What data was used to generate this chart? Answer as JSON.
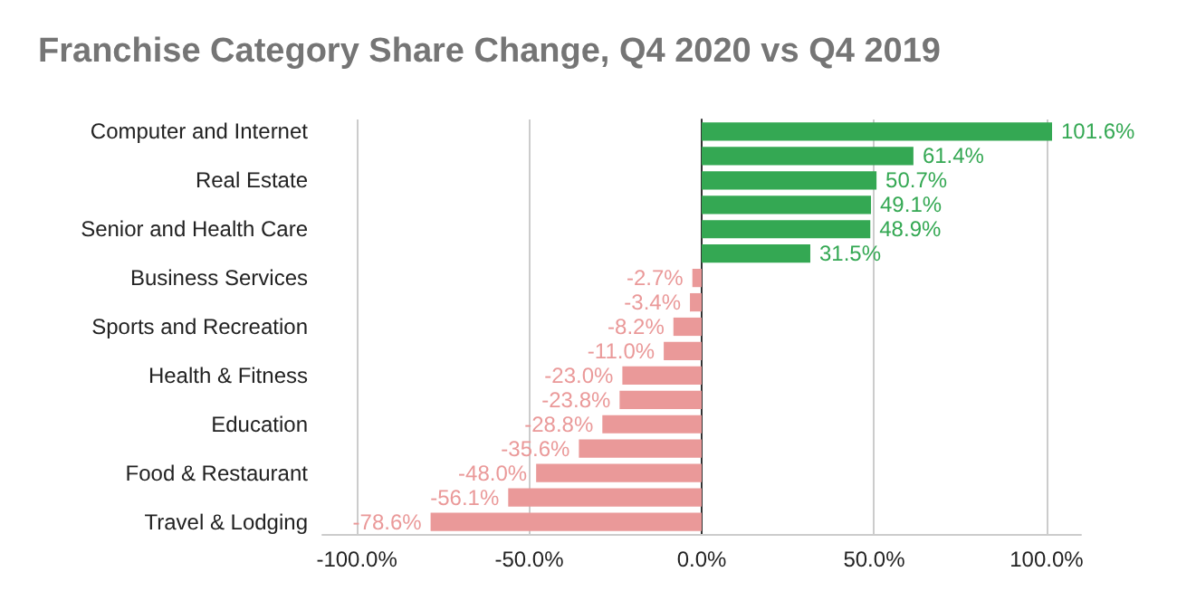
{
  "chart_data": {
    "type": "bar",
    "orientation": "horizontal",
    "title": "Franchise Category Share Change, Q4 2020 vs Q4 2019",
    "categories": [
      "Computer and Internet",
      null,
      "Real Estate",
      null,
      "Senior and Health Care",
      null,
      "Business Services",
      null,
      "Sports and Recreation",
      null,
      "Health & Fitness",
      null,
      "Education",
      null,
      "Food & Restaurant",
      null,
      "Travel & Lodging"
    ],
    "values": [
      101.6,
      61.4,
      50.7,
      49.1,
      48.9,
      31.5,
      -2.7,
      -3.4,
      -8.2,
      -11.0,
      -23.0,
      -23.8,
      -28.8,
      -35.6,
      -48.0,
      -56.1,
      -78.6
    ],
    "colors": [
      "#34a853",
      "#34a853",
      "#34a853",
      "#34a853",
      "#34a853",
      "#34a853",
      "#ea9999",
      "#ea9999",
      "#ea9999",
      "#ea9999",
      "#ea9999",
      "#ea9999",
      "#ea9999",
      "#ea9999",
      "#ea9999",
      "#ea9999",
      "#ea9999"
    ],
    "value_labels": [
      "101.6%",
      "61.4%",
      "50.7%",
      "49.1%",
      "48.9%",
      "31.5%",
      "-2.7%",
      "-3.4%",
      "-8.2%",
      "-11.0%",
      "-23.0%",
      "-23.8%",
      "-28.8%",
      "-35.6%",
      "-48.0%",
      "-56.1%",
      "-78.6%"
    ],
    "xlim": [
      -110,
      110
    ],
    "xticks": [
      {
        "value": -100,
        "label": "-100.0%"
      },
      {
        "value": -50,
        "label": "-50.0%"
      },
      {
        "value": 0,
        "label": "0.0%"
      },
      {
        "value": 50,
        "label": "50.0%"
      },
      {
        "value": 100,
        "label": "100.0%"
      }
    ],
    "grid": "x"
  }
}
